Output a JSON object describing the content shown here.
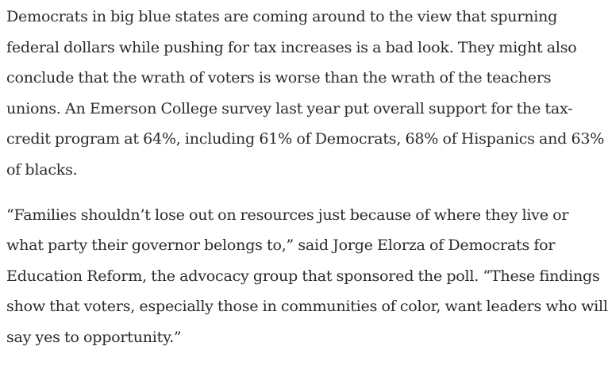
{
  "article": {
    "paragraphs": [
      "Democrats in big blue states are coming around to the view that spurning federal dollars while pushing for tax increases is a bad look. They might also conclude that the wrath of voters is worse than the wrath of the teachers unions. An Emerson College survey last year put overall support for the tax-credit program at 64%, including 61% of Democrats, 68% of Hispanics and 63% of blacks.",
      "“Families shouldn’t lose out on resources just because of where they live or what party their governor belongs to,” said Jorge Elorza of Democrats for Education Reform, the advocacy group that sponsored the poll. “These findings show that voters, especially those in communities of color, want leaders who will say yes to opportunity.”"
    ]
  }
}
